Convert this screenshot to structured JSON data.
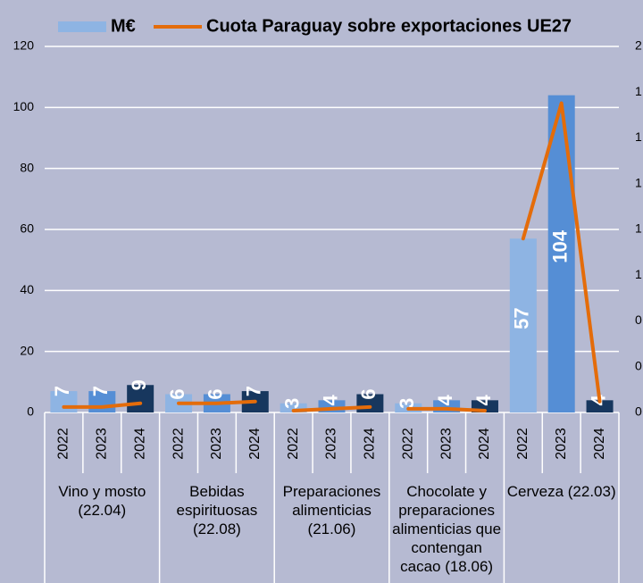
{
  "chart_data": {
    "type": "bar_line",
    "groups": [
      "Vino y mosto (22.04)",
      "Bebidas espirituosas (22.08)",
      "Preparaciones alimenticias (21.06)",
      "Chocolate y preparaciones alimenticias que contengan cacao  (18.06)",
      "Cerveza (22.03)"
    ],
    "categories": [
      [
        "2022",
        "2023",
        "2024"
      ],
      [
        "2022",
        "2023",
        "2024"
      ],
      [
        "2022",
        "2023",
        "2024"
      ],
      [
        "2022",
        "2023",
        "2024"
      ],
      [
        "2022",
        "2023",
        "2024"
      ]
    ],
    "series": [
      {
        "name": "M€",
        "type": "bar",
        "color": "#8eb4e3",
        "colors": [
          "#8eb4e3",
          "#558ed5",
          "#17375e"
        ],
        "values": [
          [
            7,
            7,
            9
          ],
          [
            6,
            6,
            7
          ],
          [
            3,
            4,
            6
          ],
          [
            3,
            4,
            4
          ],
          [
            57,
            104,
            4
          ]
        ]
      },
      {
        "name": "Cuota Paraguay sobre exportaciones UE27",
        "type": "line",
        "axis": "y2",
        "color": "#e46c0a",
        "values": [
          [
            0.03,
            0.03,
            0.05
          ],
          [
            0.05,
            0.05,
            0.06
          ],
          [
            0.01,
            0.02,
            0.03
          ],
          [
            0.02,
            0.02,
            0.01
          ],
          [
            0.95,
            1.69,
            0.06
          ]
        ]
      }
    ],
    "ylim": [
      0,
      120
    ],
    "yticks": [
      0,
      20,
      40,
      60,
      80,
      100,
      120
    ],
    "y2lim": [
      0,
      2
    ],
    "y2ticks": [
      {
        "value": 0,
        "label": "0"
      },
      {
        "value": 0.25,
        "label": "0"
      },
      {
        "value": 0.5,
        "label": "0"
      },
      {
        "value": 0.75,
        "label": "1"
      },
      {
        "value": 1,
        "label": "1"
      },
      {
        "value": 1.25,
        "label": "1"
      },
      {
        "value": 1.5,
        "label": "1"
      },
      {
        "value": 1.75,
        "label": "1"
      },
      {
        "value": 2,
        "label": "2"
      }
    ],
    "grid": true
  }
}
